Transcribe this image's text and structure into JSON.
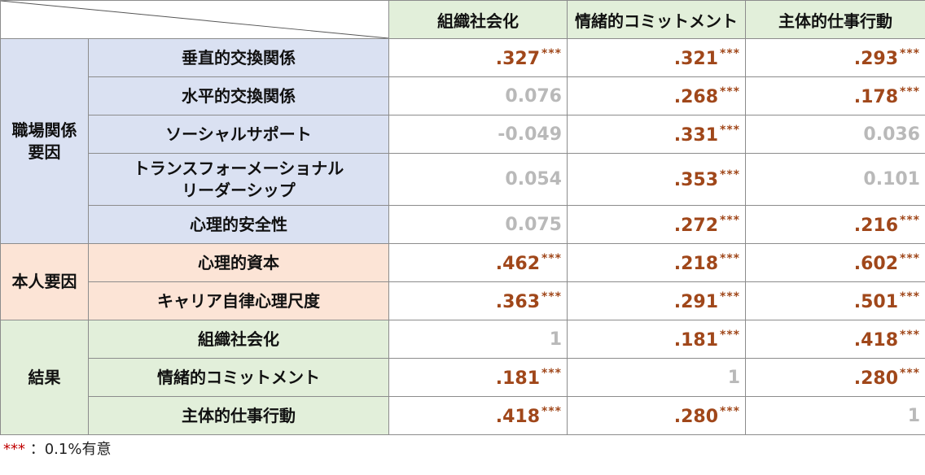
{
  "columns": [
    "組織社会化",
    "情緒的コミットメント",
    "主体的仕事行動"
  ],
  "stars_marker": "***",
  "groups": [
    {
      "label": "職場関係\n要因",
      "rows": [
        {
          "label": "垂直的交換関係",
          "cells": [
            {
              "value": ".327",
              "stars": "***"
            },
            {
              "value": ".321",
              "stars": "***"
            },
            {
              "value": ".293",
              "stars": "***"
            }
          ]
        },
        {
          "label": "水平的交換関係",
          "cells": [
            {
              "value": "0.076",
              "stars": ""
            },
            {
              "value": ".268",
              "stars": "***"
            },
            {
              "value": ".178",
              "stars": "***"
            }
          ]
        },
        {
          "label": "ソーシャルサポート",
          "cells": [
            {
              "value": "-0.049",
              "stars": ""
            },
            {
              "value": ".331",
              "stars": "***"
            },
            {
              "value": "0.036",
              "stars": ""
            }
          ]
        },
        {
          "label": "トランスフォーメーショナル\nリーダーシップ",
          "cells": [
            {
              "value": "0.054",
              "stars": ""
            },
            {
              "value": ".353",
              "stars": "***"
            },
            {
              "value": "0.101",
              "stars": ""
            }
          ]
        },
        {
          "label": "心理的安全性",
          "cells": [
            {
              "value": "0.075",
              "stars": ""
            },
            {
              "value": ".272",
              "stars": "***"
            },
            {
              "value": ".216",
              "stars": "***"
            }
          ]
        }
      ]
    },
    {
      "label": "本人要因",
      "rows": [
        {
          "label": "心理的資本",
          "cells": [
            {
              "value": ".462",
              "stars": "***"
            },
            {
              "value": ".218",
              "stars": "***"
            },
            {
              "value": ".602",
              "stars": "***"
            }
          ]
        },
        {
          "label": "キャリア自律心理尺度",
          "cells": [
            {
              "value": ".363",
              "stars": "***"
            },
            {
              "value": ".291",
              "stars": "***"
            },
            {
              "value": ".501",
              "stars": "***"
            }
          ]
        }
      ]
    },
    {
      "label": "結果",
      "rows": [
        {
          "label": "組織社会化",
          "cells": [
            {
              "value": "1",
              "stars": ""
            },
            {
              "value": ".181",
              "stars": "***"
            },
            {
              "value": ".418",
              "stars": "***"
            }
          ]
        },
        {
          "label": "情緒的コミットメント",
          "cells": [
            {
              "value": ".181",
              "stars": "***"
            },
            {
              "value": "1",
              "stars": ""
            },
            {
              "value": ".280",
              "stars": "***"
            }
          ]
        },
        {
          "label": "主体的仕事行動",
          "cells": [
            {
              "value": ".418",
              "stars": "***"
            },
            {
              "value": ".280",
              "stars": "***"
            },
            {
              "value": "1",
              "stars": ""
            }
          ]
        }
      ]
    }
  ],
  "footnote": {
    "stars": "***",
    "text": "：0.1%有意"
  },
  "colors": {
    "significant": "#a0471a",
    "not_significant": "#b9b9b9",
    "group_work": "#dae1f2",
    "group_self": "#fce4d6",
    "group_result": "#e2efda"
  }
}
